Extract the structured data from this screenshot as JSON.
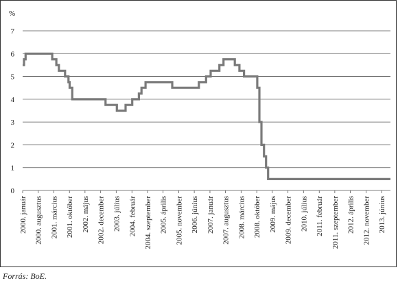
{
  "chart_data": {
    "type": "line",
    "title": "",
    "xlabel": "",
    "ylabel": "%",
    "ylim": [
      0,
      7
    ],
    "y_ticks": [
      0,
      1,
      2,
      3,
      4,
      5,
      6,
      7
    ],
    "grid": "horizontal",
    "legend": "none",
    "x_start": "2000-01-01",
    "x_end": "2013-09-30",
    "x_tick_labels": [
      {
        "label": "2000. január",
        "date": "2000-01-01"
      },
      {
        "label": "2000. augusztus",
        "date": "2000-08-01"
      },
      {
        "label": "2001. március",
        "date": "2001-03-01"
      },
      {
        "label": "2001. október",
        "date": "2001-10-01"
      },
      {
        "label": "2002. május",
        "date": "2002-05-01"
      },
      {
        "label": "2002. december",
        "date": "2002-12-01"
      },
      {
        "label": "2003. július",
        "date": "2003-07-01"
      },
      {
        "label": "2004. február",
        "date": "2004-02-01"
      },
      {
        "label": "2004. szeptember",
        "date": "2004-09-01"
      },
      {
        "label": "2005. április",
        "date": "2005-04-01"
      },
      {
        "label": "2005. november",
        "date": "2005-11-01"
      },
      {
        "label": "2006. június",
        "date": "2006-06-01"
      },
      {
        "label": "2007. január",
        "date": "2007-01-01"
      },
      {
        "label": "2007. augusztus",
        "date": "2007-08-01"
      },
      {
        "label": "2008. március",
        "date": "2008-03-01"
      },
      {
        "label": "2008. október",
        "date": "2008-10-01"
      },
      {
        "label": "2009. május",
        "date": "2009-05-01"
      },
      {
        "label": "2009. december",
        "date": "2009-12-01"
      },
      {
        "label": "2010. július",
        "date": "2010-07-01"
      },
      {
        "label": "2011. február",
        "date": "2011-02-01"
      },
      {
        "label": "2011. szeptember",
        "date": "2011-09-01"
      },
      {
        "label": "2012. április",
        "date": "2012-04-01"
      },
      {
        "label": "2012. november",
        "date": "2012-11-01"
      },
      {
        "label": "2013. június",
        "date": "2013-06-01"
      }
    ],
    "series": [
      {
        "color": "#7a7a7a",
        "points": [
          {
            "date": "2000-01-01",
            "value": 5.5
          },
          {
            "date": "2000-01-20",
            "value": 5.75
          },
          {
            "date": "2000-02-10",
            "value": 6.0
          },
          {
            "date": "2001-02-08",
            "value": 5.75
          },
          {
            "date": "2001-04-05",
            "value": 5.5
          },
          {
            "date": "2001-05-10",
            "value": 5.25
          },
          {
            "date": "2001-08-02",
            "value": 5.0
          },
          {
            "date": "2001-09-18",
            "value": 4.75
          },
          {
            "date": "2001-10-04",
            "value": 4.5
          },
          {
            "date": "2001-11-08",
            "value": 4.0
          },
          {
            "date": "2003-02-06",
            "value": 3.75
          },
          {
            "date": "2003-07-10",
            "value": 3.5
          },
          {
            "date": "2003-11-06",
            "value": 3.75
          },
          {
            "date": "2004-02-05",
            "value": 4.0
          },
          {
            "date": "2004-05-06",
            "value": 4.25
          },
          {
            "date": "2004-06-10",
            "value": 4.5
          },
          {
            "date": "2004-08-05",
            "value": 4.75
          },
          {
            "date": "2005-08-04",
            "value": 4.5
          },
          {
            "date": "2006-08-03",
            "value": 4.75
          },
          {
            "date": "2006-11-09",
            "value": 5.0
          },
          {
            "date": "2007-01-11",
            "value": 5.25
          },
          {
            "date": "2007-05-10",
            "value": 5.5
          },
          {
            "date": "2007-07-05",
            "value": 5.75
          },
          {
            "date": "2007-12-06",
            "value": 5.5
          },
          {
            "date": "2008-02-07",
            "value": 5.25
          },
          {
            "date": "2008-04-10",
            "value": 5.0
          },
          {
            "date": "2008-10-08",
            "value": 4.5
          },
          {
            "date": "2008-11-06",
            "value": 3.0
          },
          {
            "date": "2008-12-04",
            "value": 2.0
          },
          {
            "date": "2009-01-08",
            "value": 1.5
          },
          {
            "date": "2009-02-05",
            "value": 1.0
          },
          {
            "date": "2009-03-05",
            "value": 0.5
          },
          {
            "date": "2013-09-30",
            "value": 0.5
          }
        ]
      }
    ]
  },
  "source_note": "Forrás: BoE."
}
